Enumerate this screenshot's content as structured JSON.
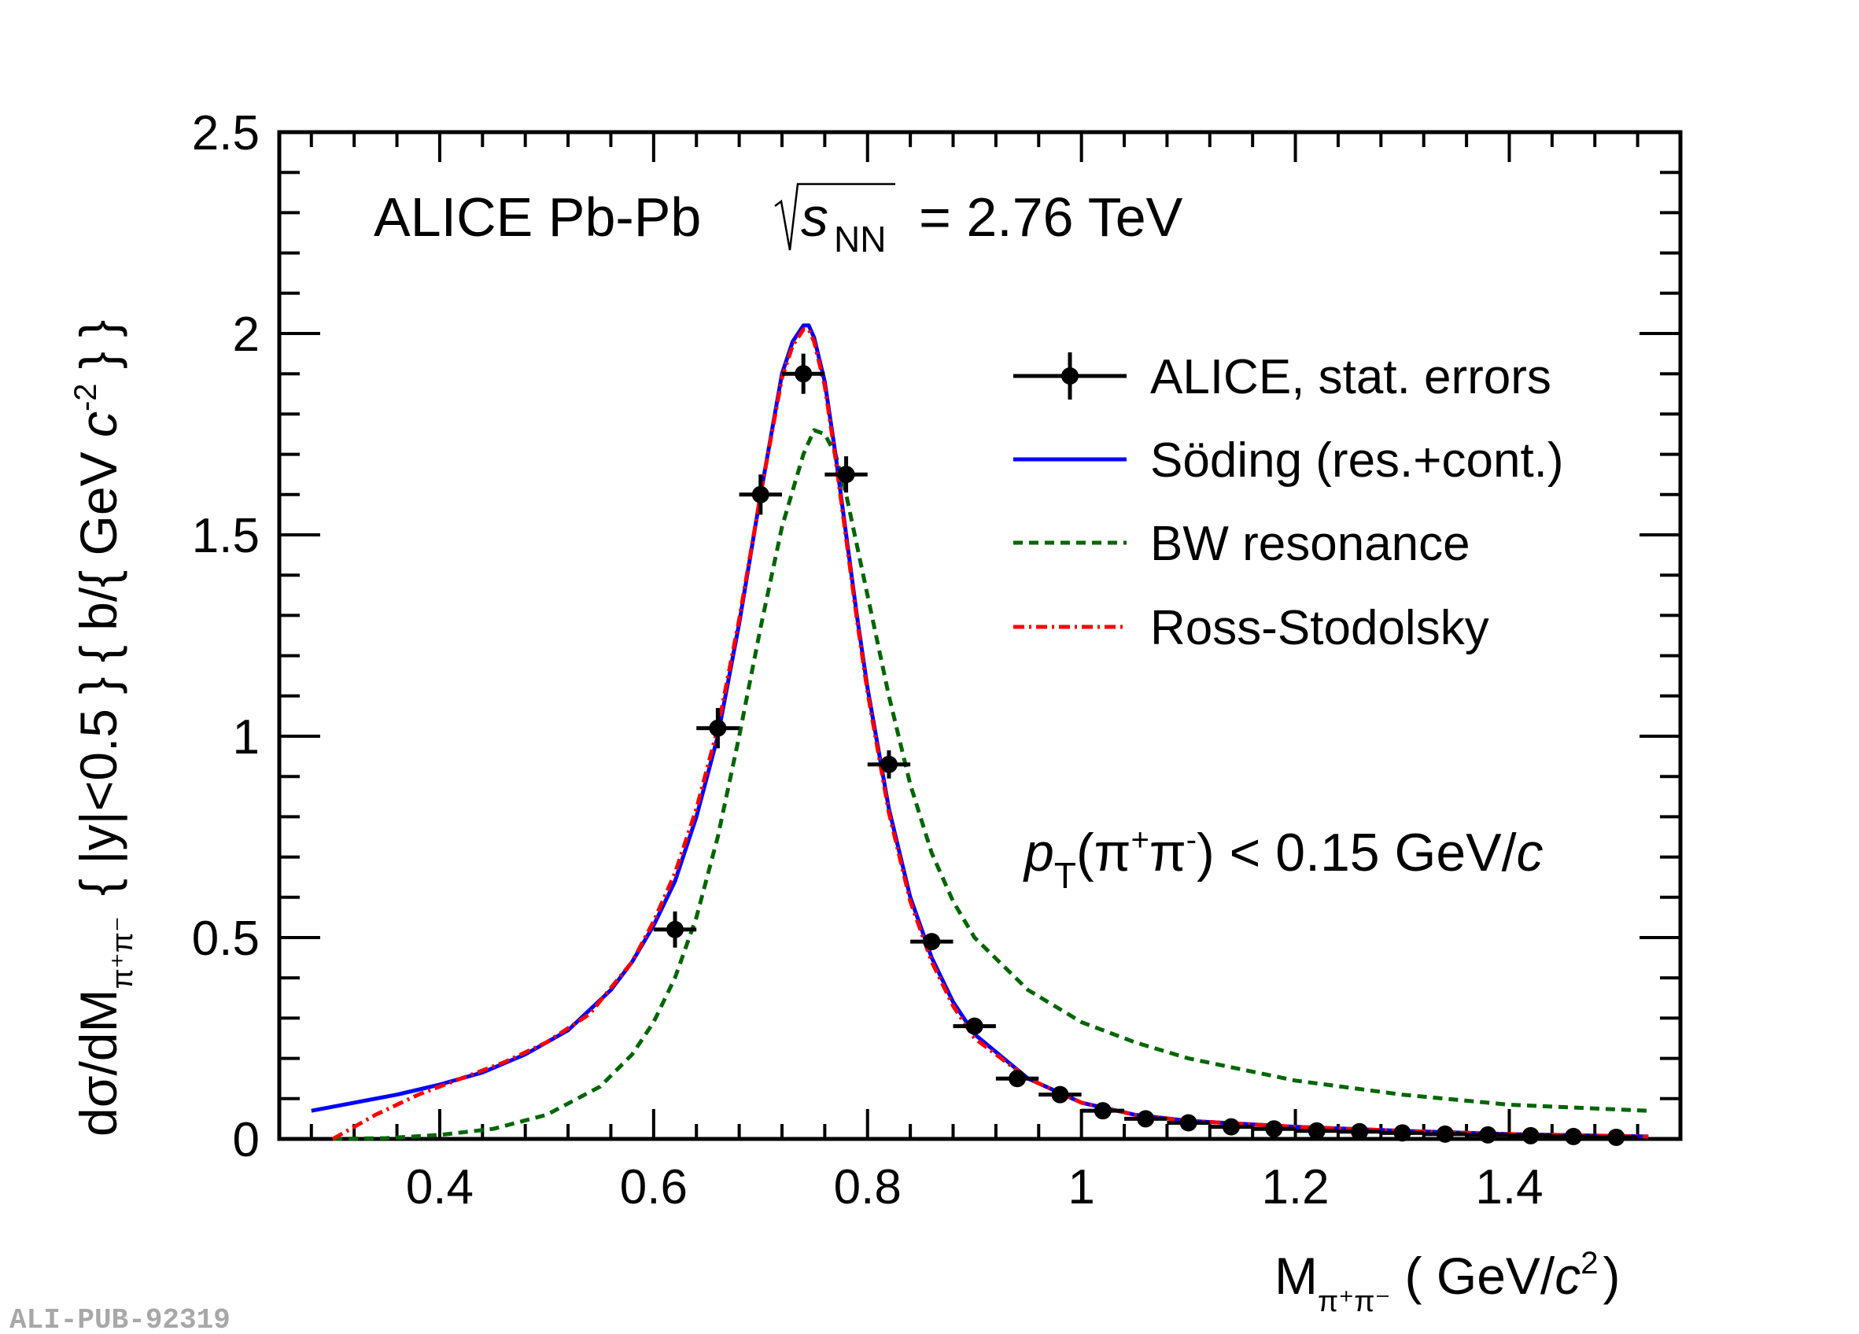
{
  "chart_data": {
    "type": "scatter",
    "title": "ALICE Pb-Pb",
    "energy": {
      "sqrt_label": "s",
      "sub": "NN",
      "rest": "= 2.76 TeV"
    },
    "cut": {
      "p": "p",
      "p_sub": "T",
      "paren_open": "(",
      "pi1": "π",
      "sup1": "+",
      "pi2": "π",
      "sup2": "-",
      "rest": ") < 0.15 GeV/",
      "c": "c"
    },
    "xlabel": {
      "M": "M",
      "sub": "π⁺π⁻",
      "unit_open": "(",
      "unit": " GeV/",
      "c": "c",
      "pow": "2",
      "unit_close": ")"
    },
    "ylabel": {
      "a": "dσ/dM",
      "a_sub": "π⁺π⁻",
      "b": "|y|<0.5",
      "c": "b/",
      "d": "GeV ",
      "d_c": "c",
      "d_pow": "-2"
    },
    "xlim": [
      0.25,
      1.56
    ],
    "ylim": [
      0,
      2.5
    ],
    "xticks": [
      0.4,
      0.6,
      0.8,
      1.0,
      1.2,
      1.4
    ],
    "xtick_labels": [
      "0.4",
      "0.6",
      "0.8",
      "1",
      "1.2",
      "1.4"
    ],
    "yticks": [
      0,
      0.5,
      1.0,
      1.5,
      2.0,
      2.5
    ],
    "ytick_labels": [
      "0",
      "0.5",
      "1",
      "1.5",
      "2",
      "2.5"
    ],
    "legend": [
      {
        "label": "ALICE, stat. errors",
        "color": "#000000",
        "style": "marker"
      },
      {
        "label": "Söding (res.+cont.)",
        "color": "#0000ff",
        "style": "solid"
      },
      {
        "label": "BW resonance",
        "color": "#006600",
        "style": "dashed"
      },
      {
        "label": "Ross-Stodolsky",
        "color": "#ff0000",
        "style": "dashdot"
      }
    ],
    "series": [
      {
        "name": "ALICE, stat. errors",
        "x": [
          0.62,
          0.66,
          0.7,
          0.74,
          0.78,
          0.82,
          0.86,
          0.9,
          0.94,
          0.98,
          1.02,
          1.06,
          1.1,
          1.14,
          1.18,
          1.22,
          1.26,
          1.3,
          1.34,
          1.38,
          1.42,
          1.46,
          1.5
        ],
        "y": [
          0.52,
          1.02,
          1.6,
          1.9,
          1.65,
          0.93,
          0.49,
          0.28,
          0.15,
          0.11,
          0.07,
          0.05,
          0.04,
          0.03,
          0.025,
          0.02,
          0.018,
          0.015,
          0.012,
          0.01,
          0.008,
          0.006,
          0.004
        ],
        "xerr": 0.02,
        "yerr": [
          0.045,
          0.05,
          0.05,
          0.05,
          0.045,
          0.035,
          0.02,
          0.015,
          0.01,
          0.01,
          0.008,
          0.006,
          0.005,
          0.005,
          0.005,
          0.005,
          0.005,
          0.004,
          0.004,
          0.004,
          0.004,
          0.003,
          0.003
        ]
      },
      {
        "name": "Söding (res.+cont.)",
        "x": [
          0.28,
          0.32,
          0.36,
          0.4,
          0.44,
          0.48,
          0.52,
          0.56,
          0.58,
          0.6,
          0.62,
          0.64,
          0.66,
          0.68,
          0.7,
          0.72,
          0.73,
          0.74,
          0.745,
          0.75,
          0.76,
          0.77,
          0.78,
          0.79,
          0.8,
          0.82,
          0.84,
          0.86,
          0.88,
          0.9,
          0.95,
          1.0,
          1.05,
          1.1,
          1.2,
          1.3,
          1.4,
          1.53
        ],
        "y": [
          0.07,
          0.09,
          0.11,
          0.135,
          0.165,
          0.21,
          0.27,
          0.37,
          0.44,
          0.53,
          0.64,
          0.8,
          1.0,
          1.28,
          1.6,
          1.9,
          1.98,
          2.02,
          2.02,
          1.99,
          1.88,
          1.7,
          1.5,
          1.3,
          1.12,
          0.82,
          0.6,
          0.45,
          0.34,
          0.26,
          0.15,
          0.09,
          0.06,
          0.045,
          0.03,
          0.02,
          0.012,
          0.006
        ]
      },
      {
        "name": "BW resonance",
        "x": [
          0.3,
          0.35,
          0.4,
          0.45,
          0.5,
          0.55,
          0.58,
          0.6,
          0.62,
          0.64,
          0.66,
          0.68,
          0.7,
          0.72,
          0.74,
          0.75,
          0.76,
          0.77,
          0.78,
          0.8,
          0.82,
          0.84,
          0.86,
          0.88,
          0.9,
          0.95,
          1.0,
          1.05,
          1.1,
          1.2,
          1.3,
          1.4,
          1.53
        ],
        "y": [
          0.0,
          0.002,
          0.01,
          0.025,
          0.06,
          0.13,
          0.21,
          0.29,
          0.4,
          0.55,
          0.75,
          1.0,
          1.27,
          1.52,
          1.7,
          1.76,
          1.75,
          1.7,
          1.6,
          1.35,
          1.1,
          0.88,
          0.71,
          0.59,
          0.5,
          0.37,
          0.29,
          0.24,
          0.2,
          0.145,
          0.11,
          0.085,
          0.07
        ]
      },
      {
        "name": "Ross-Stodolsky",
        "x": [
          0.3,
          0.34,
          0.38,
          0.42,
          0.46,
          0.5,
          0.54,
          0.58,
          0.6,
          0.62,
          0.64,
          0.66,
          0.68,
          0.7,
          0.72,
          0.73,
          0.74,
          0.745,
          0.75,
          0.76,
          0.77,
          0.78,
          0.79,
          0.8,
          0.82,
          0.84,
          0.86,
          0.88,
          0.9,
          0.95,
          1.0,
          1.05,
          1.1,
          1.2,
          1.3,
          1.4,
          1.53
        ],
        "y": [
          0.0,
          0.06,
          0.11,
          0.15,
          0.19,
          0.24,
          0.31,
          0.44,
          0.54,
          0.66,
          0.82,
          1.02,
          1.29,
          1.6,
          1.89,
          1.97,
          2.01,
          2.01,
          1.98,
          1.87,
          1.69,
          1.49,
          1.29,
          1.11,
          0.81,
          0.59,
          0.44,
          0.33,
          0.25,
          0.15,
          0.09,
          0.06,
          0.045,
          0.03,
          0.02,
          0.012,
          0.006
        ]
      }
    ]
  },
  "footer": {
    "id": "ALI-PUB-92319"
  }
}
